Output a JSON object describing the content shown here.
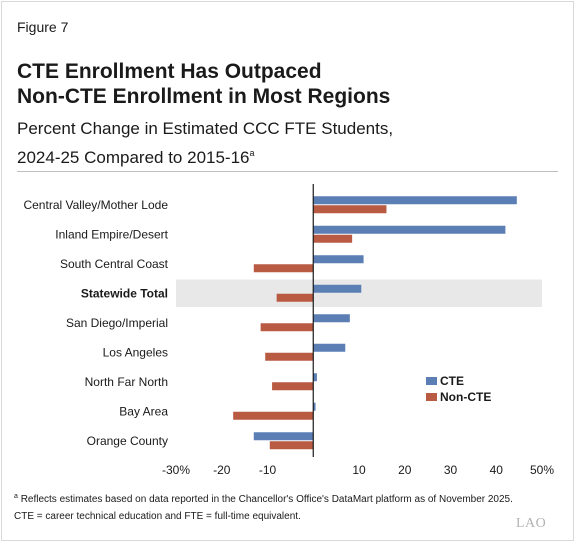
{
  "figure_label": "Figure 7",
  "title_lines": [
    "CTE Enrollment Has Outpaced",
    "Non-CTE Enrollment in Most Regions"
  ],
  "subtitle_lines": [
    "Percent Change in Estimated CCC FTE Students,",
    "2024-25 Compared to 2015-16"
  ],
  "subtitle_footnote_marker": "a",
  "colors": {
    "cte": "#5b7fb5",
    "non_cte": "#b95a43",
    "highlight": "#e8e8e8"
  },
  "chart_data": {
    "type": "bar",
    "orientation": "horizontal",
    "categories": [
      "Central Valley/Mother Lode",
      "Inland Empire/Desert",
      "South Central Coast",
      "Statewide Total",
      "San Diego/Imperial",
      "Los Angeles",
      "North Far North",
      "Bay Area",
      "Orange County"
    ],
    "highlighted_category": "Statewide Total",
    "series": [
      {
        "name": "CTE",
        "values": [
          44.5,
          42,
          11,
          10.5,
          8,
          7,
          0.8,
          0.5,
          -13
        ]
      },
      {
        "name": "Non-CTE",
        "values": [
          16,
          8.5,
          -13,
          -8,
          -11.5,
          -10.5,
          -9,
          -17.5,
          -9.5
        ]
      }
    ],
    "xlim": [
      -30,
      50
    ],
    "x_ticks": [
      -30,
      -20,
      -10,
      10,
      20,
      30,
      40,
      50
    ],
    "x_tick_labels": [
      "-30%",
      "-20",
      "-10",
      "10",
      "20",
      "30",
      "40",
      "50%"
    ],
    "legend_position": "right",
    "grid": false
  },
  "notes": {
    "footnote_marker": "a",
    "footnote": "Reflects estimates based on data reported in the Chancellor's Office's DataMart platform as of November 2025.",
    "abbreviations": "CTE = career technical education and FTE = full-time equivalent."
  },
  "logo_text": "LAO"
}
